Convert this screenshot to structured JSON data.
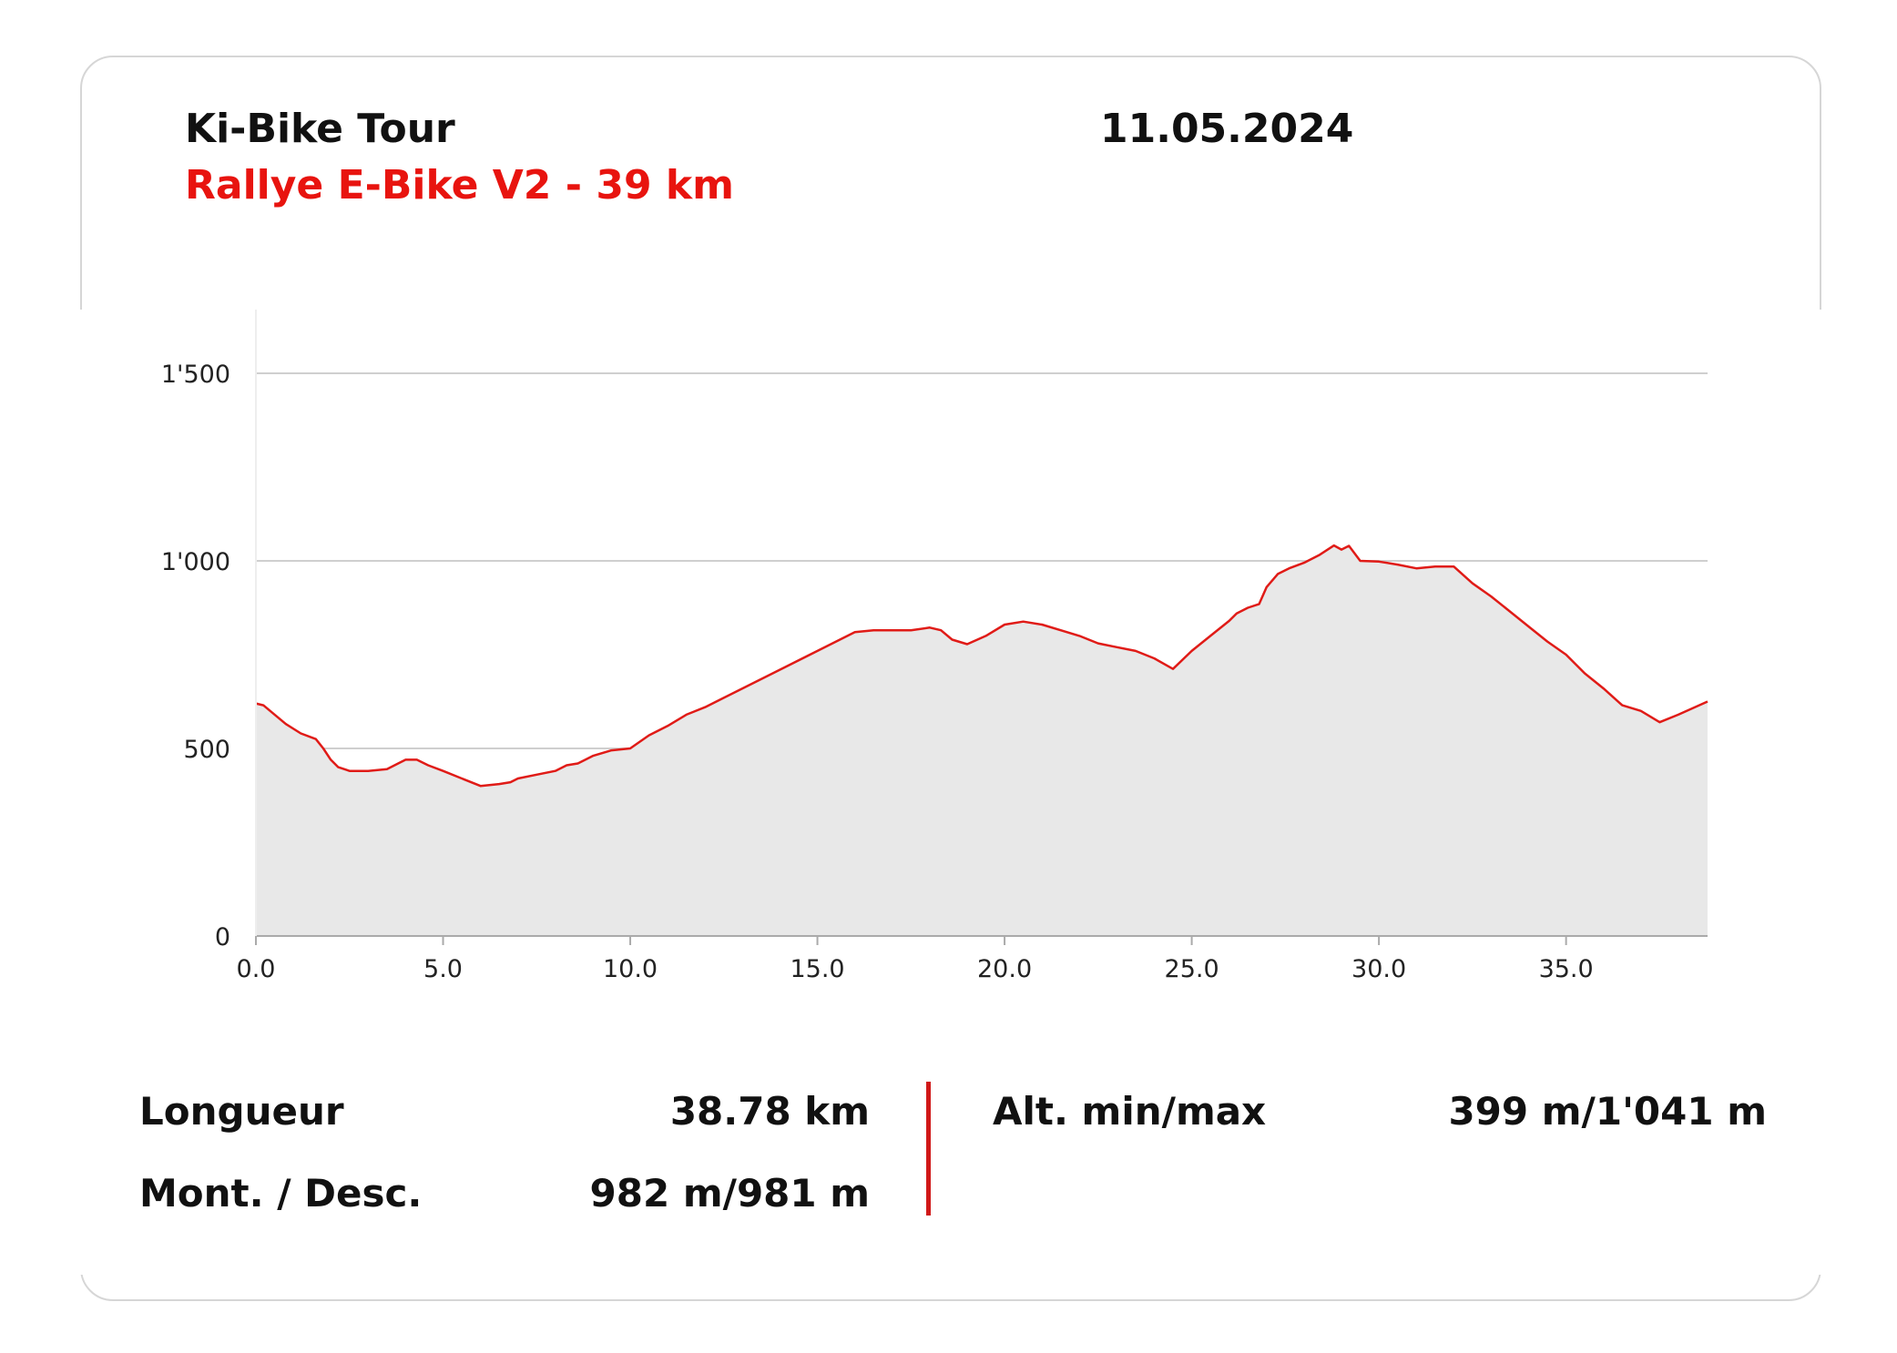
{
  "header": {
    "title": "Ki-Bike Tour",
    "subtitle": "Rallye E-Bike V2 - 39 km",
    "date": "11.05.2024"
  },
  "colors": {
    "line": "#e01b17",
    "fill": "#e8e8e8",
    "grid": "#cfcfcf",
    "accent": "#e8140f"
  },
  "chart_data": {
    "type": "area",
    "xlim": [
      0,
      38.78
    ],
    "ylim": [
      0,
      1650
    ],
    "xticks": [
      0,
      5,
      10,
      15,
      20,
      25,
      30,
      35
    ],
    "xtick_labels": [
      "0.0",
      "5.0",
      "10.0",
      "15.0",
      "20.0",
      "25.0",
      "30.0",
      "35.0"
    ],
    "yticks": [
      0,
      500,
      1000,
      1500
    ],
    "ytick_labels": [
      "0",
      "500",
      "1'000",
      "1'500"
    ],
    "grid": true,
    "series": [
      {
        "x": [
          0,
          0.2,
          0.5,
          0.8,
          1.2,
          1.6,
          1.8,
          2.0,
          2.2,
          2.5,
          3.0,
          3.5,
          3.8,
          4.0,
          4.3,
          4.6,
          5.0,
          5.5,
          6.0,
          6.5,
          6.8,
          7.0,
          7.5,
          8.0,
          8.3,
          8.6,
          9.0,
          9.5,
          10.0,
          10.5,
          11.0,
          11.5,
          12.0,
          12.5,
          13.0,
          14.0,
          15.0,
          16.0,
          16.5,
          17.0,
          17.5,
          18.0,
          18.3,
          18.6,
          19.0,
          19.5,
          20.0,
          20.5,
          21.0,
          21.5,
          22.0,
          22.5,
          23.0,
          23.5,
          24.0,
          24.5,
          25.0,
          25.5,
          26.0,
          26.2,
          26.5,
          26.8,
          27.0,
          27.3,
          27.6,
          28.0,
          28.4,
          28.8,
          29.0,
          29.2,
          29.5,
          30.0,
          30.5,
          31.0,
          31.5,
          32.0,
          32.5,
          33.0,
          33.5,
          34.0,
          34.5,
          35.0,
          35.5,
          36.0,
          36.5,
          37.0,
          37.5,
          38.0,
          38.78
        ],
        "y": [
          620,
          615,
          590,
          565,
          540,
          525,
          500,
          470,
          450,
          440,
          440,
          445,
          460,
          470,
          470,
          455,
          440,
          420,
          400,
          405,
          410,
          420,
          430,
          440,
          455,
          460,
          480,
          495,
          500,
          535,
          560,
          590,
          610,
          635,
          660,
          710,
          760,
          810,
          815,
          815,
          815,
          822,
          815,
          790,
          778,
          800,
          830,
          838,
          830,
          815,
          800,
          780,
          770,
          760,
          740,
          712,
          760,
          800,
          840,
          860,
          875,
          885,
          930,
          965,
          980,
          995,
          1015,
          1041,
          1030,
          1040,
          1000,
          998,
          990,
          980,
          985,
          985,
          940,
          905,
          865,
          825,
          785,
          750,
          700,
          660,
          615,
          600,
          570,
          590,
          625
        ]
      }
    ]
  },
  "stats": {
    "length_label": "Longueur",
    "length_value": "38.78 km",
    "climb_label": "Mont. / Desc.",
    "climb_value": "982 m/981 m",
    "alt_label": "Alt. min/max",
    "alt_value": "399 m/1'041 m"
  }
}
